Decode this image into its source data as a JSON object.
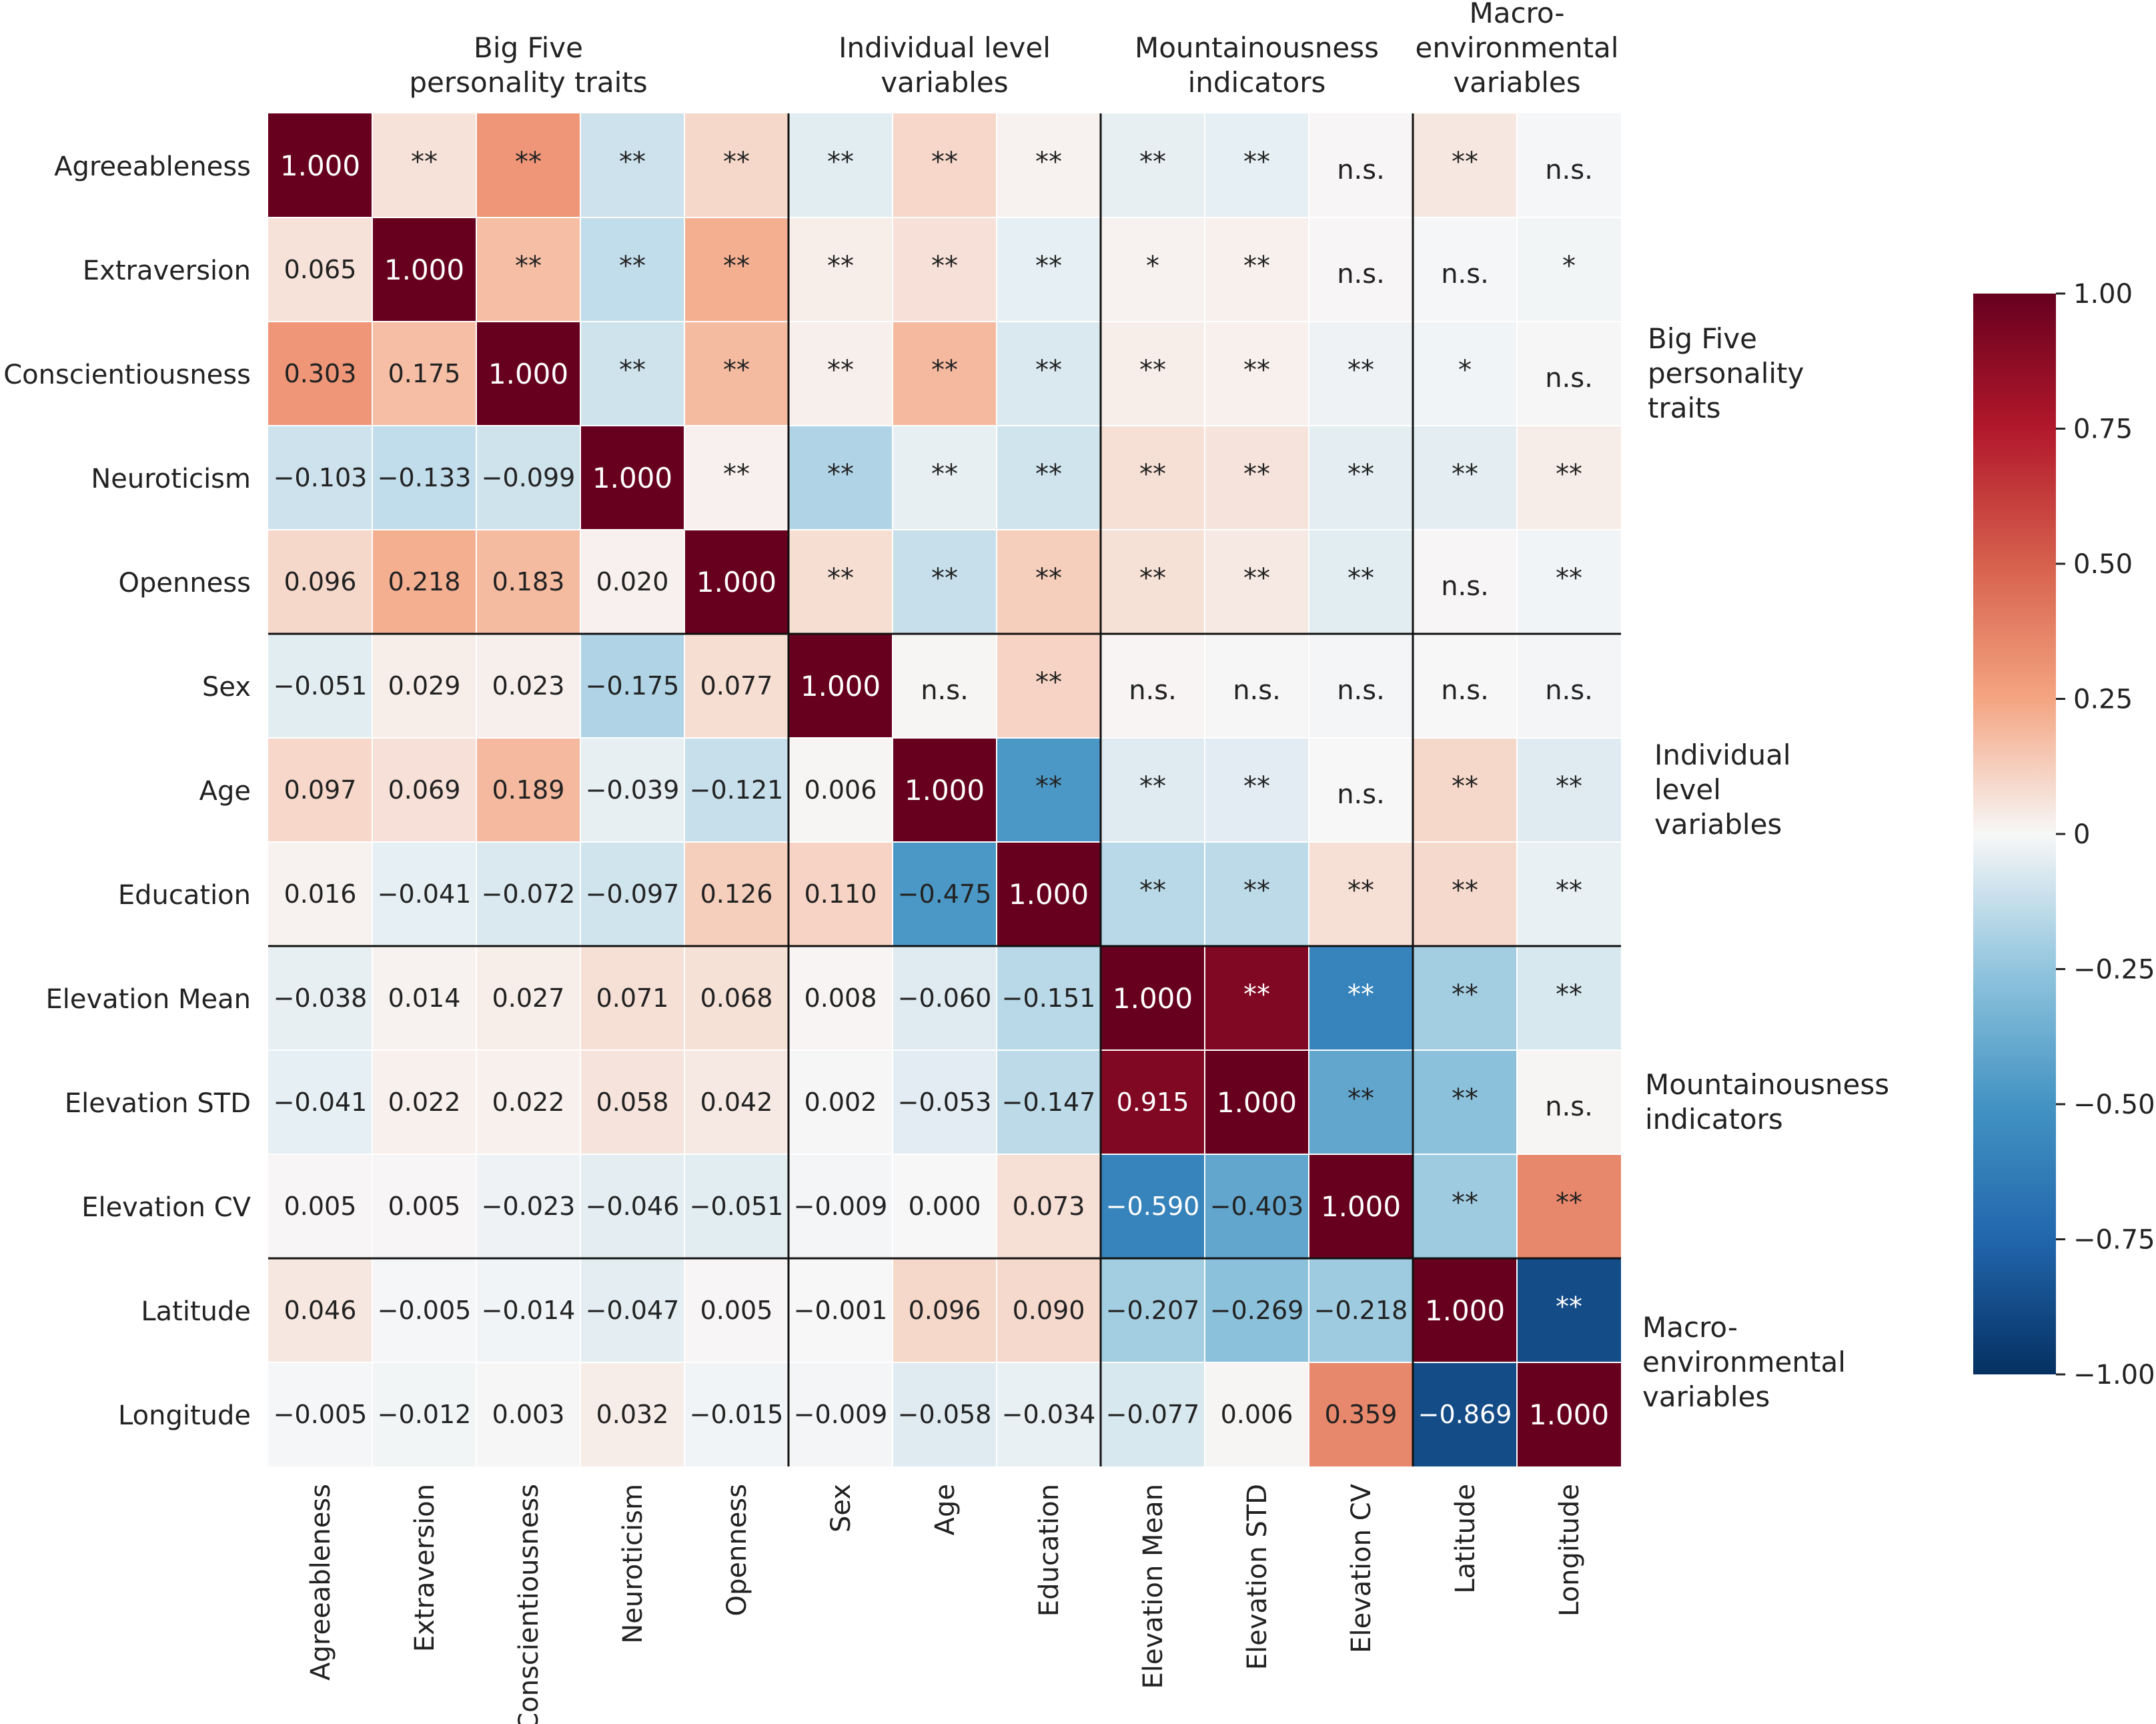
{
  "chart_data": {
    "type": "heatmap",
    "title": "",
    "variables": [
      "Agreeableness",
      "Extraversion",
      "Conscientiousness",
      "Neuroticism",
      "Openness",
      "Sex",
      "Age",
      "Education",
      "Elevation Mean",
      "Elevation STD",
      "Elevation CV",
      "Latitude",
      "Longitude"
    ],
    "lower_values": [
      [
        "1.000"
      ],
      [
        "0.065",
        "1.000"
      ],
      [
        "0.303",
        "0.175",
        "1.000"
      ],
      [
        "−0.103",
        "−0.133",
        "−0.099",
        "1.000"
      ],
      [
        "0.096",
        "0.218",
        "0.183",
        "0.020",
        "1.000"
      ],
      [
        "−0.051",
        "0.029",
        "0.023",
        "−0.175",
        "0.077",
        "1.000"
      ],
      [
        "0.097",
        "0.069",
        "0.189",
        "−0.039",
        "−0.121",
        "0.006",
        "1.000"
      ],
      [
        "0.016",
        "−0.041",
        "−0.072",
        "−0.097",
        "0.126",
        "0.110",
        "−0.475",
        "1.000"
      ],
      [
        "−0.038",
        "0.014",
        "0.027",
        "0.071",
        "0.068",
        "0.008",
        "−0.060",
        "−0.151",
        "1.000"
      ],
      [
        "−0.041",
        "0.022",
        "0.022",
        "0.058",
        "0.042",
        "0.002",
        "−0.053",
        "−0.147",
        "0.915",
        "1.000"
      ],
      [
        "0.005",
        "0.005",
        "−0.023",
        "−0.046",
        "−0.051",
        "−0.009",
        "0.000",
        "0.073",
        "−0.590",
        "−0.403",
        "1.000"
      ],
      [
        "0.046",
        "−0.005",
        "−0.014",
        "−0.047",
        "0.005",
        "−0.001",
        "0.096",
        "0.090",
        "−0.207",
        "−0.269",
        "−0.218",
        "1.000"
      ],
      [
        "−0.005",
        "−0.012",
        "0.003",
        "0.032",
        "−0.015",
        "−0.009",
        "−0.058",
        "−0.034",
        "−0.077",
        "0.006",
        "0.359",
        "−0.869",
        "1.000"
      ]
    ],
    "upper_significance": [
      [],
      [
        "**"
      ],
      [
        "**",
        "**"
      ],
      [
        "**",
        "**",
        "**"
      ],
      [
        "**",
        "**",
        "**",
        "**"
      ],
      [
        "**",
        "**",
        "**",
        "**",
        "**"
      ],
      [
        "**",
        "**",
        "**",
        "**",
        "**",
        "n.s."
      ],
      [
        "**",
        "**",
        "**",
        "**",
        "**",
        "**",
        "**"
      ],
      [
        "**",
        "*",
        "**",
        "**",
        "**",
        "n.s.",
        "**",
        "**"
      ],
      [
        "**",
        "**",
        "**",
        "**",
        "**",
        "n.s.",
        "**",
        "**",
        "**"
      ],
      [
        "n.s.",
        "n.s.",
        "**",
        "**",
        "**",
        "n.s.",
        "n.s.",
        "**",
        "**",
        "**"
      ],
      [
        "**",
        "n.s.",
        "*",
        "**",
        "n.s.",
        "n.s.",
        "**",
        "**",
        "**",
        "**",
        "**"
      ],
      [
        "n.s.",
        "*",
        "n.s.",
        "**",
        "**",
        "n.s.",
        "**",
        "**",
        "**",
        "n.s.",
        "**",
        "**"
      ]
    ],
    "groups": [
      {
        "label_lines": [
          "Big Five",
          "personality traits"
        ],
        "side_label_lines": [
          "Big Five",
          "personality",
          "traits"
        ],
        "start": 0,
        "end": 4
      },
      {
        "label_lines": [
          "Individual level",
          "variables"
        ],
        "side_label_lines": [
          "Individual",
          "level",
          "variables"
        ],
        "start": 5,
        "end": 7
      },
      {
        "label_lines": [
          "Mountainousness",
          "indicators"
        ],
        "side_label_lines": [
          "Mountainousness",
          "indicators"
        ],
        "start": 8,
        "end": 10
      },
      {
        "label_lines": [
          "Macro-",
          "environmental",
          "variables"
        ],
        "side_label_lines": [
          "Macro-",
          "environmental",
          "variables"
        ],
        "start": 11,
        "end": 12
      }
    ],
    "colorbar": {
      "range": [
        -1,
        1
      ],
      "ticks": [
        1,
        0.75,
        0.5,
        0.25,
        0,
        -0.25,
        -0.5,
        -0.75,
        -1
      ],
      "tick_labels": [
        "1.00",
        "0.75",
        "0.50",
        "0.25",
        "0",
        "−0.25",
        "−0.50",
        "−0.75",
        "−1.00"
      ],
      "colormap": "RdBu_r"
    }
  }
}
